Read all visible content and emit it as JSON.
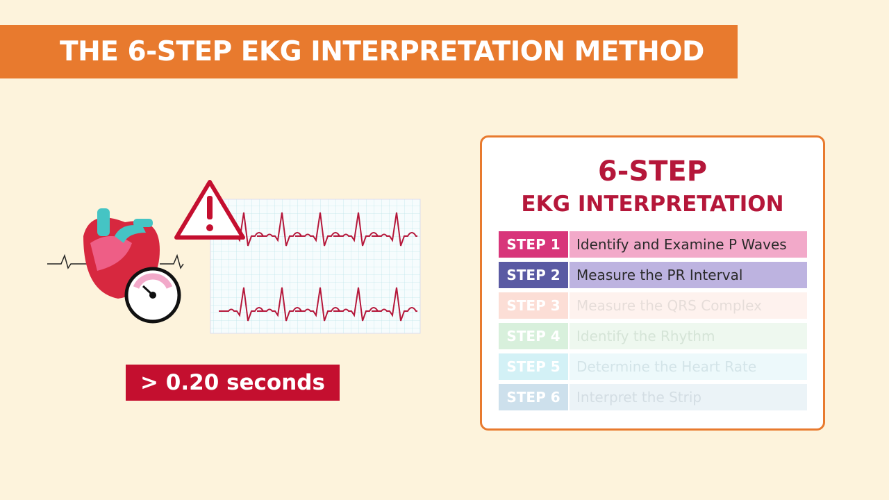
{
  "header": {
    "title": "THE 6-STEP EKG INTERPRETATION METHOD"
  },
  "illustration": {
    "label": "> 0.20 seconds"
  },
  "panel": {
    "title": "6-STEP",
    "subtitle": "EKG INTERPRETATION",
    "steps": [
      {
        "step": "STEP 1",
        "label": "Identify and Examine P Waves"
      },
      {
        "step": "STEP 2",
        "label": "Measure the PR Interval"
      },
      {
        "step": "STEP 3",
        "label": "Measure the QRS Complex"
      },
      {
        "step": "STEP 4",
        "label": "Identify the Rhythm"
      },
      {
        "step": "STEP 5",
        "label": "Determine the Heart Rate"
      },
      {
        "step": "STEP 6",
        "label": "Interpret the Strip"
      }
    ]
  }
}
